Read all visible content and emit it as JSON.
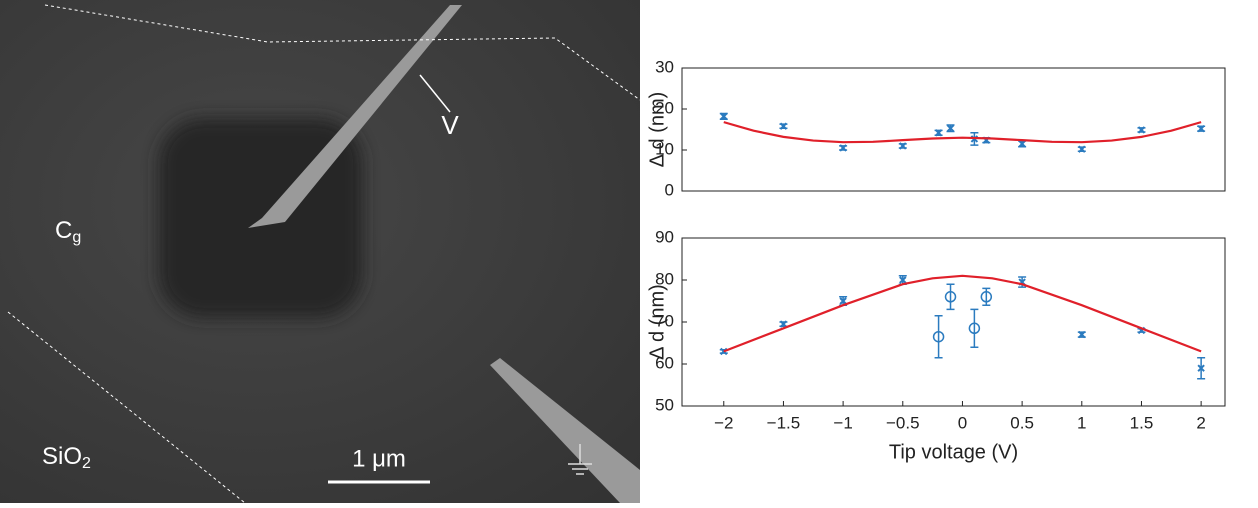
{
  "image": {
    "tip_label": "V",
    "gate_label": "C",
    "gate_sub": "g",
    "substrate_label": "SiO",
    "substrate_sub": "2",
    "scale_bar": "1 μm"
  },
  "chart_data": [
    {
      "type": "scatter",
      "ylabel": "Δ d (nm)",
      "xlim": [
        -2.35,
        2.2
      ],
      "ylim": [
        0,
        30
      ],
      "yticks": [
        0,
        10,
        20,
        30
      ],
      "series": [
        {
          "marker": "x",
          "color": "#2b7bbf",
          "x": [
            -2,
            -1.5,
            -1,
            -0.5,
            -0.2,
            -0.1,
            0.1,
            0.2,
            0.5,
            1,
            1.5,
            2
          ],
          "values": [
            18.2,
            15.8,
            10.5,
            11,
            14.2,
            15.3,
            12.7,
            12.4,
            11.5,
            10.2,
            14.9,
            15.2
          ],
          "errors": [
            0.7,
            0.5,
            0.5,
            0.5,
            0.6,
            0.8,
            1.5,
            0.6,
            0.7,
            0.5,
            0.5,
            0.6
          ]
        },
        {
          "marker": "line",
          "color": "#e0202a",
          "x": [
            -2,
            -1.75,
            -1.5,
            -1.25,
            -1,
            -0.75,
            -0.5,
            -0.25,
            0,
            0.25,
            0.5,
            0.75,
            1,
            1.25,
            1.5,
            1.75,
            2
          ],
          "values": [
            16.8,
            14.7,
            13.2,
            12.3,
            11.9,
            12,
            12.4,
            12.8,
            13,
            12.8,
            12.4,
            12,
            11.9,
            12.3,
            13.2,
            14.7,
            16.8
          ]
        }
      ]
    },
    {
      "type": "scatter",
      "ylabel": "Δ d (nm)",
      "xlabel": "Tip voltage (V)",
      "xlim": [
        -2.35,
        2.2
      ],
      "ylim": [
        50,
        90
      ],
      "yticks": [
        50,
        60,
        70,
        80,
        90
      ],
      "xticks": [
        {
          "value": -2,
          "label": "−2"
        },
        {
          "value": -1.5,
          "label": "−1.5"
        },
        {
          "value": -1,
          "label": "−1"
        },
        {
          "value": -0.5,
          "label": "−0.5"
        },
        0,
        0.5,
        1,
        1.5,
        2
      ],
      "series": [
        {
          "marker": "x",
          "color": "#2b7bbf",
          "x": [
            -2,
            -1.5,
            -1,
            -0.5,
            0.5,
            1,
            1.5,
            2
          ],
          "values": [
            63,
            69.5,
            75,
            80,
            79.5,
            67,
            68,
            59
          ],
          "errors": [
            0.4,
            0.5,
            1,
            1,
            1.2,
            0.6,
            0.4,
            2.5
          ]
        },
        {
          "marker": "o",
          "color": "#2b7bbf",
          "x": [
            -0.2,
            -0.1,
            0.1,
            0.2
          ],
          "values": [
            66.5,
            76,
            68.5,
            76
          ],
          "errors": [
            5,
            3,
            4.5,
            2
          ]
        },
        {
          "marker": "line",
          "color": "#e0202a",
          "x": [
            -2,
            -1.5,
            -1,
            -0.5,
            -0.25,
            0,
            0.25,
            0.5,
            1,
            1.5,
            2
          ],
          "values": [
            63,
            68.5,
            74,
            79,
            80.4,
            81,
            80.4,
            79,
            74,
            68.5,
            63
          ]
        }
      ]
    }
  ]
}
